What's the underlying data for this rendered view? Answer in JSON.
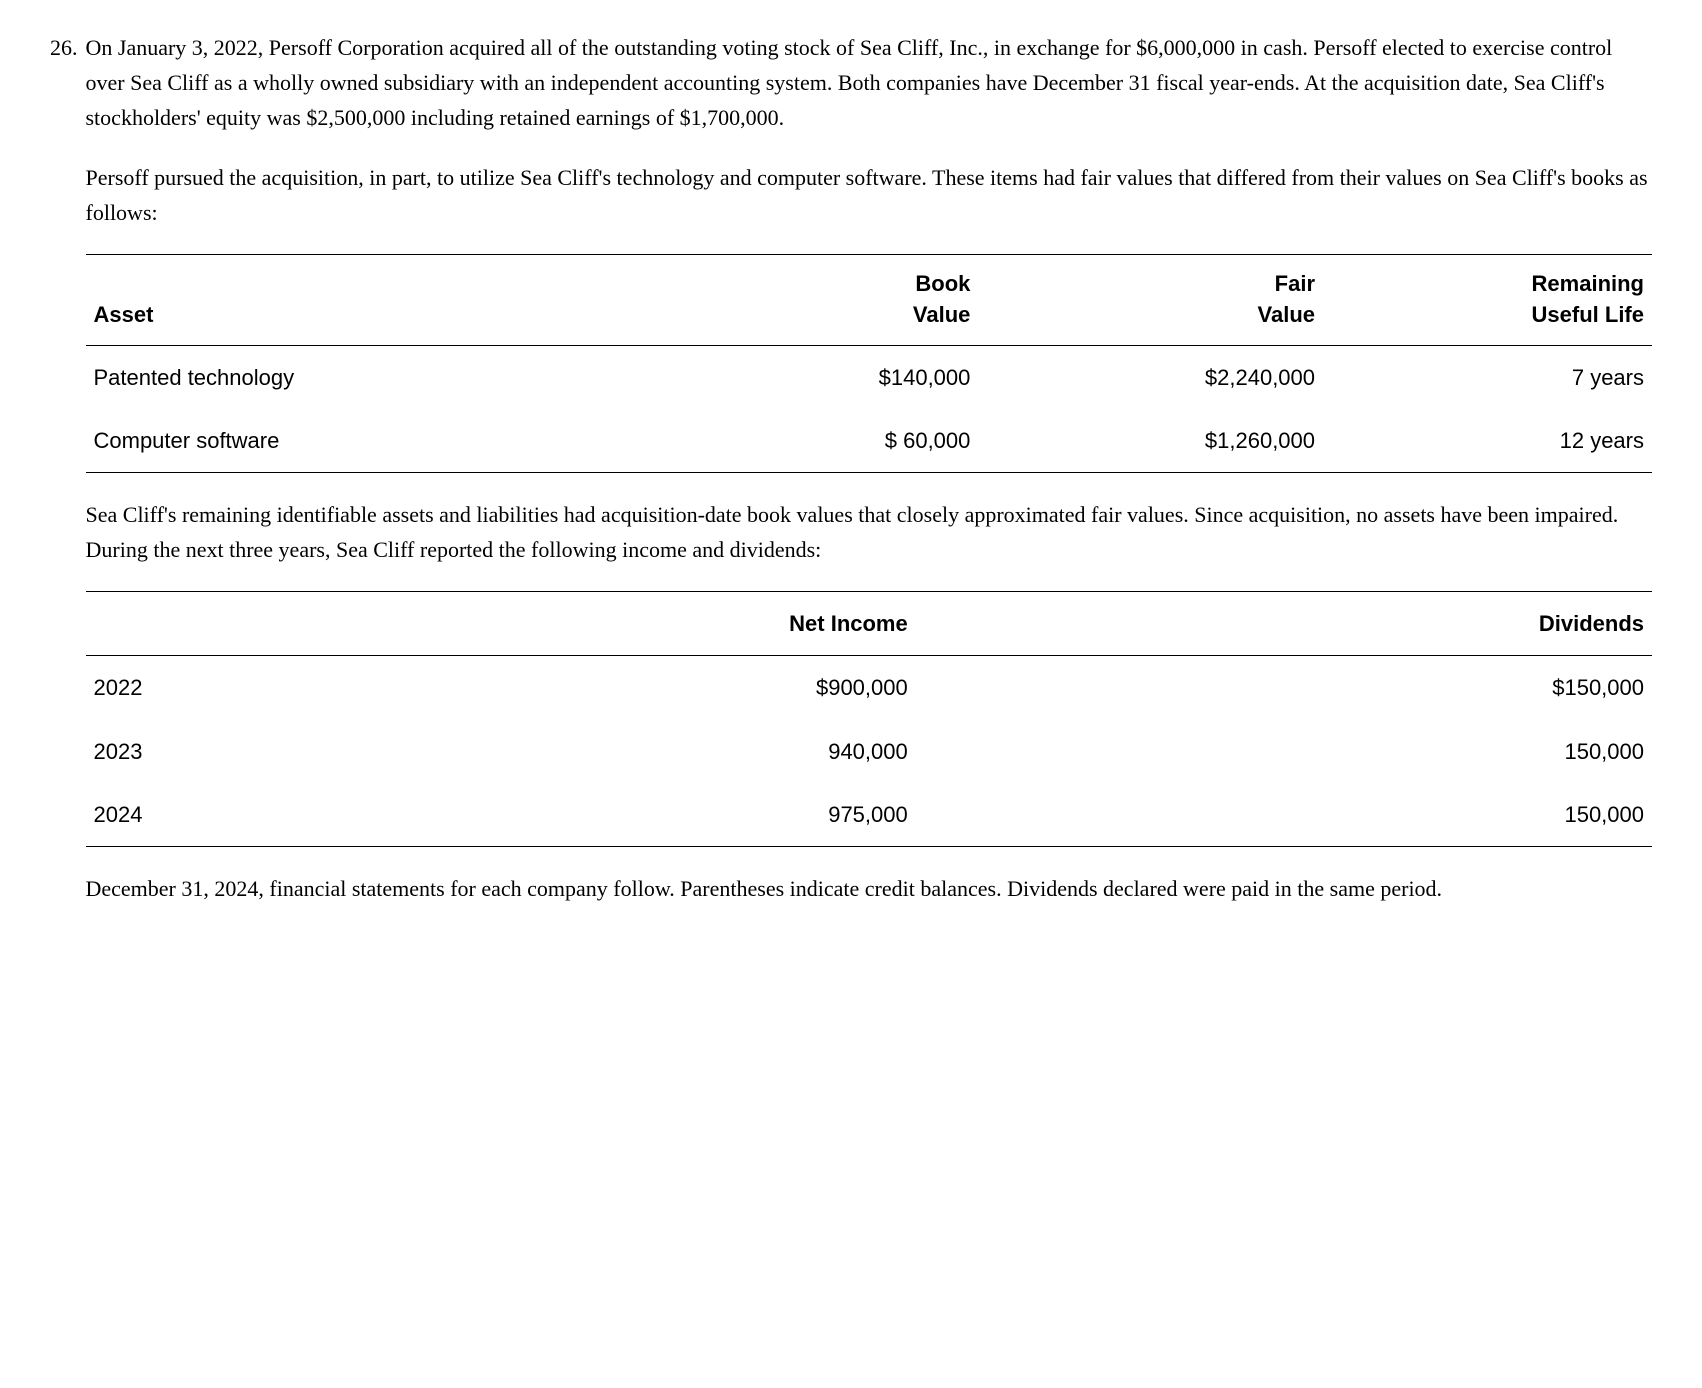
{
  "question_number": "26.",
  "paragraph_1": "On January 3, 2022, Persoff Corporation acquired all of the outstanding voting stock of Sea Cliff, Inc., in exchange for $6,000,000 in cash. Persoff elected to exercise control over Sea Cliff as a wholly owned subsidiary with an independent accounting system. Both companies have December 31 fiscal year-ends. At the acquisition date, Sea Cliff's stockholders' equity was $2,500,000 including retained earnings of $1,700,000.",
  "paragraph_2": "Persoff pursued the acquisition, in part, to utilize Sea Cliff's technology and computer software. These items had fair values that differed from their values on Sea Cliff's books as follows:",
  "table1": {
    "headers": {
      "asset": "Asset",
      "book_line1": "Book",
      "book_line2": "Value",
      "fair_line1": "Fair",
      "fair_line2": "Value",
      "life_line1": "Remaining",
      "life_line2": "Useful Life"
    },
    "rows": [
      {
        "asset": "Patented technology",
        "book": "$140,000",
        "fair": "$2,240,000",
        "life": "7 years"
      },
      {
        "asset": "Computer software",
        "book": "$ 60,000",
        "fair": "$1,260,000",
        "life": "12 years"
      }
    ]
  },
  "paragraph_3": "Sea Cliff's remaining identifiable assets and liabilities had acquisition-date book values that closely approximated fair values. Since acquisition, no assets have been impaired. During the next three years, Sea Cliff reported the following income and dividends:",
  "table2": {
    "headers": {
      "income": "Net Income",
      "dividends": "Dividends"
    },
    "rows": [
      {
        "year": "2022",
        "income": "$900,000",
        "dividends": "$150,000"
      },
      {
        "year": "2023",
        "income": "940,000",
        "dividends": "150,000"
      },
      {
        "year": "2024",
        "income": "975,000",
        "dividends": "150,000"
      }
    ]
  },
  "paragraph_4": "December 31, 2024, financial statements for each company follow. Parentheses indicate credit balances. Dividends declared were paid in the same period."
}
